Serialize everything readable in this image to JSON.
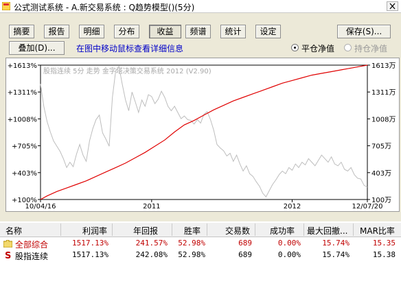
{
  "window": {
    "title": "公式测试系统 - A.新交易系统 : Q趋势模型()(5分)"
  },
  "toolbar": {
    "tabs": [
      {
        "label": "摘要",
        "active": false
      },
      {
        "label": "报告",
        "active": false
      },
      {
        "label": "明细",
        "active": false
      },
      {
        "label": "分布",
        "active": false
      },
      {
        "label": "收益",
        "active": true
      },
      {
        "label": "频谱",
        "active": false
      },
      {
        "label": "统计",
        "active": false
      },
      {
        "label": "设定",
        "active": false
      }
    ],
    "save_label": "保存(S)...",
    "overlay_label": "叠加(D)...",
    "hint": "在图中移动鼠标查看详细信息",
    "radio_flat_label": "平仓净值",
    "radio_hold_label": "持仓净值",
    "radio_selected": "flat"
  },
  "chart_data": {
    "type": "line",
    "watermark": "股指连续 5分 走势 金字塔决策交易系统 2012 (V2.90)",
    "left_axis_ticks": [
      "+1613%",
      "+1311%",
      "+1008%",
      "+705%",
      "+403%",
      "+100%"
    ],
    "right_axis_ticks": [
      "1613万",
      "1311万",
      "1008万",
      "705万",
      "403万",
      "100万"
    ],
    "y_range": [
      100,
      1613
    ],
    "x_labels": [
      "10/04/16",
      "2011",
      "2012",
      "12/07/20"
    ],
    "colors": {
      "equity": "#e00000",
      "price": "#bdbdbd"
    },
    "series": [
      {
        "kind": "equity",
        "x": [
          0,
          0.02,
          0.05,
          0.08,
          0.11,
          0.14,
          0.17,
          0.2,
          0.23,
          0.26,
          0.29,
          0.32,
          0.35,
          0.38,
          0.41,
          0.44,
          0.47,
          0.5,
          0.53,
          0.56,
          0.59,
          0.62,
          0.65,
          0.68,
          0.71,
          0.74,
          0.77,
          0.8,
          0.83,
          0.86,
          0.89,
          0.92,
          0.95,
          0.98,
          1.0
        ],
        "values": [
          100,
          140,
          190,
          230,
          270,
          310,
          360,
          410,
          460,
          510,
          570,
          630,
          700,
          770,
          860,
          940,
          990,
          1050,
          1110,
          1160,
          1210,
          1250,
          1290,
          1330,
          1370,
          1410,
          1440,
          1470,
          1500,
          1520,
          1540,
          1560,
          1580,
          1600,
          1613
        ]
      },
      {
        "kind": "price",
        "x": [
          0,
          0.01,
          0.02,
          0.03,
          0.04,
          0.05,
          0.06,
          0.07,
          0.08,
          0.09,
          0.1,
          0.11,
          0.12,
          0.13,
          0.14,
          0.15,
          0.16,
          0.17,
          0.18,
          0.19,
          0.2,
          0.21,
          0.22,
          0.23,
          0.24,
          0.25,
          0.26,
          0.27,
          0.28,
          0.29,
          0.3,
          0.31,
          0.32,
          0.33,
          0.34,
          0.35,
          0.36,
          0.37,
          0.38,
          0.39,
          0.4,
          0.41,
          0.42,
          0.43,
          0.44,
          0.45,
          0.46,
          0.47,
          0.48,
          0.49,
          0.5,
          0.51,
          0.52,
          0.53,
          0.54,
          0.55,
          0.56,
          0.57,
          0.58,
          0.59,
          0.6,
          0.61,
          0.62,
          0.63,
          0.64,
          0.65,
          0.66,
          0.67,
          0.68,
          0.69,
          0.7,
          0.71,
          0.72,
          0.73,
          0.74,
          0.75,
          0.76,
          0.77,
          0.78,
          0.79,
          0.8,
          0.81,
          0.82,
          0.83,
          0.84,
          0.85,
          0.86,
          0.87,
          0.88,
          0.89,
          0.9,
          0.91,
          0.92,
          0.93,
          0.94,
          0.95,
          0.96,
          0.97,
          0.98,
          0.99,
          1.0
        ],
        "values": [
          1400,
          1150,
          980,
          860,
          760,
          700,
          640,
          560,
          460,
          520,
          470,
          610,
          720,
          600,
          530,
          760,
          900,
          1000,
          1050,
          850,
          780,
          700,
          1250,
          1550,
          1600,
          1400,
          1220,
          1100,
          1310,
          1200,
          1080,
          1220,
          1150,
          1280,
          1260,
          1180,
          1230,
          1320,
          1250,
          1150,
          1100,
          1150,
          1080,
          1010,
          1040,
          1000,
          990,
          950,
          1000,
          960,
          1060,
          1090,
          1000,
          880,
          720,
          680,
          650,
          590,
          620,
          530,
          600,
          500,
          420,
          480,
          390,
          360,
          300,
          250,
          170,
          130,
          200,
          270,
          320,
          380,
          420,
          390,
          460,
          430,
          500,
          460,
          520,
          490,
          560,
          520,
          480,
          540,
          600,
          560,
          520,
          580,
          500,
          480,
          520,
          440,
          420,
          460,
          380,
          340,
          330,
          260,
          240
        ]
      }
    ]
  },
  "table": {
    "headers": [
      "名称",
      "利润率",
      "年回报",
      "胜率",
      "交易数",
      "成功率",
      "最大回撤...",
      "MAR比率"
    ],
    "rows": [
      {
        "icon": "folder-icon",
        "name": "全部综合",
        "values": [
          "1517.13%",
          "241.57%",
          "52.98%",
          "689",
          "0.00%",
          "15.74%",
          "15.35"
        ],
        "color": "#c00000"
      },
      {
        "icon": "s-badge-icon",
        "name": "股指连续",
        "values": [
          "1517.13%",
          "242.08%",
          "52.98%",
          "689",
          "0.00%",
          "15.74%",
          "15.38"
        ],
        "color": "#000000"
      }
    ]
  }
}
